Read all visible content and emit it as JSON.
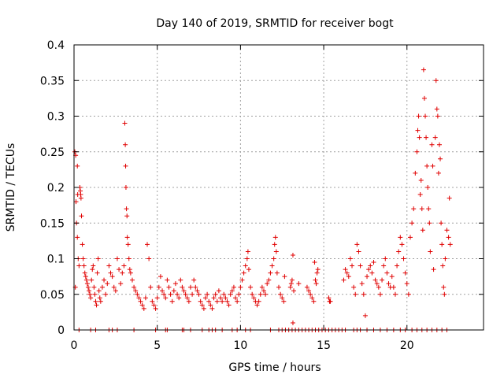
{
  "chart_data": {
    "type": "scatter",
    "title": "Day 140 of 2019, SRMTID for receiver bogt",
    "xlabel": "GPS time / hours",
    "ylabel": "SRMTID / TECUs",
    "xlim": [
      0,
      24.6
    ],
    "ylim": [
      0,
      0.4
    ],
    "x_ticks": [
      0,
      5,
      10,
      15,
      20
    ],
    "x_tick_labels": [
      "0",
      "5",
      "10",
      "15",
      "20"
    ],
    "y_ticks": [
      0,
      0.05,
      0.1,
      0.15,
      0.2,
      0.25,
      0.3,
      0.35,
      0.4
    ],
    "y_tick_labels": [
      "0",
      "0.05",
      "0.1",
      "0.15",
      "0.2",
      "0.25",
      "0.3",
      "0.35",
      "0.4"
    ],
    "grid": true,
    "marker": "+",
    "marker_color": "#e00000",
    "series": [
      {
        "name": "SRMTID",
        "points": [
          [
            0.05,
            0.25
          ],
          [
            0.1,
            0.245
          ],
          [
            0.12,
            0.18
          ],
          [
            0.15,
            0.15
          ],
          [
            0.2,
            0.13
          ],
          [
            0.25,
            0.1
          ],
          [
            0.3,
            0.09
          ],
          [
            0.08,
            0.06
          ],
          [
            0.2,
            0.23
          ],
          [
            0.22,
            0.19
          ],
          [
            0.35,
            0.2
          ],
          [
            0.38,
            0.195
          ],
          [
            0.4,
            0.19
          ],
          [
            0.42,
            0.185
          ],
          [
            0.45,
            0.16
          ],
          [
            0.5,
            0.12
          ],
          [
            0.55,
            0.1
          ],
          [
            0.6,
            0.09
          ],
          [
            0.65,
            0.08
          ],
          [
            0.7,
            0.075
          ],
          [
            0.75,
            0.07
          ],
          [
            0.8,
            0.065
          ],
          [
            0.85,
            0.06
          ],
          [
            0.9,
            0.055
          ],
          [
            0.95,
            0.05
          ],
          [
            1.0,
            0.045
          ],
          [
            1.05,
            0.07
          ],
          [
            1.1,
            0.085
          ],
          [
            1.15,
            0.09
          ],
          [
            1.2,
            0.06
          ],
          [
            1.25,
            0.05
          ],
          [
            1.3,
            0.04
          ],
          [
            1.35,
            0.035
          ],
          [
            1.4,
            0.08
          ],
          [
            1.45,
            0.1
          ],
          [
            1.5,
            0.055
          ],
          [
            1.55,
            0.045
          ],
          [
            1.6,
            0.04
          ],
          [
            1.7,
            0.06
          ],
          [
            1.8,
            0.07
          ],
          [
            1.9,
            0.05
          ],
          [
            2.0,
            0.065
          ],
          [
            2.1,
            0.09
          ],
          [
            2.2,
            0.08
          ],
          [
            2.3,
            0.075
          ],
          [
            2.4,
            0.06
          ],
          [
            2.5,
            0.055
          ],
          [
            2.6,
            0.1
          ],
          [
            2.7,
            0.085
          ],
          [
            2.8,
            0.065
          ],
          [
            2.9,
            0.08
          ],
          [
            3.0,
            0.09
          ],
          [
            3.05,
            0.29
          ],
          [
            3.08,
            0.26
          ],
          [
            3.1,
            0.23
          ],
          [
            3.12,
            0.2
          ],
          [
            3.15,
            0.17
          ],
          [
            3.18,
            0.16
          ],
          [
            3.2,
            0.13
          ],
          [
            3.25,
            0.12
          ],
          [
            3.3,
            0.1
          ],
          [
            3.35,
            0.085
          ],
          [
            3.4,
            0.08
          ],
          [
            3.5,
            0.07
          ],
          [
            3.6,
            0.06
          ],
          [
            3.7,
            0.055
          ],
          [
            3.8,
            0.05
          ],
          [
            3.9,
            0.045
          ],
          [
            4.0,
            0.04
          ],
          [
            4.1,
            0.035
          ],
          [
            4.2,
            0.03
          ],
          [
            4.3,
            0.045
          ],
          [
            4.4,
            0.12
          ],
          [
            4.5,
            0.1
          ],
          [
            4.6,
            0.06
          ],
          [
            4.7,
            0.04
          ],
          [
            4.8,
            0.035
          ],
          [
            4.9,
            0.03
          ],
          [
            5.0,
            0.045
          ],
          [
            5.1,
            0.06
          ],
          [
            5.2,
            0.075
          ],
          [
            5.3,
            0.055
          ],
          [
            5.4,
            0.05
          ],
          [
            5.5,
            0.045
          ],
          [
            5.6,
            0.07
          ],
          [
            5.7,
            0.06
          ],
          [
            5.8,
            0.05
          ],
          [
            5.9,
            0.04
          ],
          [
            6.0,
            0.055
          ],
          [
            6.1,
            0.065
          ],
          [
            6.2,
            0.05
          ],
          [
            6.3,
            0.045
          ],
          [
            6.4,
            0.07
          ],
          [
            6.5,
            0.06
          ],
          [
            6.6,
            0.055
          ],
          [
            6.7,
            0.05
          ],
          [
            6.8,
            0.045
          ],
          [
            6.9,
            0.04
          ],
          [
            7.0,
            0.06
          ],
          [
            7.1,
            0.05
          ],
          [
            7.2,
            0.07
          ],
          [
            7.3,
            0.06
          ],
          [
            7.4,
            0.055
          ],
          [
            7.5,
            0.05
          ],
          [
            7.6,
            0.04
          ],
          [
            7.7,
            0.035
          ],
          [
            7.8,
            0.03
          ],
          [
            7.9,
            0.045
          ],
          [
            8.0,
            0.05
          ],
          [
            8.1,
            0.04
          ],
          [
            8.2,
            0.035
          ],
          [
            8.3,
            0.03
          ],
          [
            8.4,
            0.045
          ],
          [
            8.5,
            0.05
          ],
          [
            8.6,
            0.04
          ],
          [
            8.7,
            0.055
          ],
          [
            8.8,
            0.045
          ],
          [
            8.9,
            0.04
          ],
          [
            9.0,
            0.05
          ],
          [
            9.1,
            0.045
          ],
          [
            9.2,
            0.04
          ],
          [
            9.3,
            0.035
          ],
          [
            9.4,
            0.05
          ],
          [
            9.5,
            0.055
          ],
          [
            9.6,
            0.06
          ],
          [
            9.7,
            0.045
          ],
          [
            9.8,
            0.04
          ],
          [
            9.9,
            0.05
          ],
          [
            10.0,
            0.06
          ],
          [
            10.1,
            0.07
          ],
          [
            10.2,
            0.08
          ],
          [
            10.3,
            0.09
          ],
          [
            10.4,
            0.1
          ],
          [
            10.45,
            0.11
          ],
          [
            10.5,
            0.085
          ],
          [
            10.6,
            0.06
          ],
          [
            10.7,
            0.05
          ],
          [
            10.8,
            0.045
          ],
          [
            10.9,
            0.04
          ],
          [
            11.0,
            0.035
          ],
          [
            11.1,
            0.04
          ],
          [
            11.2,
            0.05
          ],
          [
            11.3,
            0.06
          ],
          [
            11.4,
            0.055
          ],
          [
            11.5,
            0.05
          ],
          [
            11.6,
            0.065
          ],
          [
            11.7,
            0.07
          ],
          [
            11.8,
            0.08
          ],
          [
            11.9,
            0.09
          ],
          [
            12.0,
            0.1
          ],
          [
            12.05,
            0.12
          ],
          [
            12.1,
            0.13
          ],
          [
            12.15,
            0.11
          ],
          [
            12.2,
            0.08
          ],
          [
            12.3,
            0.06
          ],
          [
            12.4,
            0.05
          ],
          [
            12.5,
            0.045
          ],
          [
            12.6,
            0.04
          ],
          [
            12.65,
            0.075
          ],
          [
            13.0,
            0.06
          ],
          [
            13.05,
            0.065
          ],
          [
            13.1,
            0.07
          ],
          [
            13.15,
            0.105
          ],
          [
            13.2,
            0.055
          ],
          [
            13.15,
            0.01
          ],
          [
            13.5,
            0.065
          ],
          [
            14.0,
            0.06
          ],
          [
            14.1,
            0.055
          ],
          [
            14.2,
            0.05
          ],
          [
            14.3,
            0.045
          ],
          [
            14.4,
            0.04
          ],
          [
            14.45,
            0.095
          ],
          [
            14.5,
            0.07
          ],
          [
            14.55,
            0.065
          ],
          [
            14.6,
            0.08
          ],
          [
            14.65,
            0.085
          ],
          [
            15.3,
            0.045
          ],
          [
            15.35,
            0.04
          ],
          [
            15.4,
            0.04
          ],
          [
            16.2,
            0.07
          ],
          [
            16.3,
            0.085
          ],
          [
            16.4,
            0.08
          ],
          [
            16.5,
            0.075
          ],
          [
            16.6,
            0.1
          ],
          [
            16.7,
            0.09
          ],
          [
            16.8,
            0.06
          ],
          [
            16.9,
            0.05
          ],
          [
            17.0,
            0.12
          ],
          [
            17.1,
            0.11
          ],
          [
            17.2,
            0.09
          ],
          [
            17.3,
            0.065
          ],
          [
            17.4,
            0.05
          ],
          [
            17.5,
            0.02
          ],
          [
            17.6,
            0.075
          ],
          [
            17.7,
            0.085
          ],
          [
            17.8,
            0.09
          ],
          [
            17.9,
            0.08
          ],
          [
            18.0,
            0.095
          ],
          [
            18.1,
            0.07
          ],
          [
            18.2,
            0.065
          ],
          [
            18.3,
            0.06
          ],
          [
            18.4,
            0.05
          ],
          [
            18.5,
            0.07
          ],
          [
            18.6,
            0.09
          ],
          [
            18.7,
            0.1
          ],
          [
            18.8,
            0.08
          ],
          [
            18.9,
            0.065
          ],
          [
            19.0,
            0.06
          ],
          [
            19.1,
            0.075
          ],
          [
            19.2,
            0.06
          ],
          [
            19.3,
            0.05
          ],
          [
            19.4,
            0.09
          ],
          [
            19.5,
            0.11
          ],
          [
            19.6,
            0.13
          ],
          [
            19.7,
            0.12
          ],
          [
            19.8,
            0.1
          ],
          [
            19.9,
            0.08
          ],
          [
            20.0,
            0.065
          ],
          [
            20.1,
            0.05
          ],
          [
            20.2,
            0.13
          ],
          [
            20.3,
            0.15
          ],
          [
            20.4,
            0.17
          ],
          [
            20.5,
            0.22
          ],
          [
            20.6,
            0.25
          ],
          [
            20.65,
            0.28
          ],
          [
            20.7,
            0.3
          ],
          [
            20.75,
            0.27
          ],
          [
            20.8,
            0.19
          ],
          [
            20.85,
            0.21
          ],
          [
            20.9,
            0.17
          ],
          [
            20.95,
            0.14
          ],
          [
            21.0,
            0.365
          ],
          [
            21.05,
            0.325
          ],
          [
            21.1,
            0.3
          ],
          [
            21.15,
            0.27
          ],
          [
            21.2,
            0.23
          ],
          [
            21.25,
            0.2
          ],
          [
            21.3,
            0.17
          ],
          [
            21.35,
            0.15
          ],
          [
            21.4,
            0.11
          ],
          [
            21.5,
            0.26
          ],
          [
            21.55,
            0.23
          ],
          [
            21.6,
            0.085
          ],
          [
            21.7,
            0.27
          ],
          [
            21.75,
            0.35
          ],
          [
            21.8,
            0.31
          ],
          [
            21.85,
            0.3
          ],
          [
            21.9,
            0.22
          ],
          [
            21.95,
            0.26
          ],
          [
            22.0,
            0.24
          ],
          [
            22.05,
            0.15
          ],
          [
            22.1,
            0.12
          ],
          [
            22.15,
            0.09
          ],
          [
            22.2,
            0.06
          ],
          [
            22.25,
            0.05
          ],
          [
            22.3,
            0.1
          ],
          [
            22.4,
            0.14
          ],
          [
            22.5,
            0.13
          ],
          [
            22.55,
            0.185
          ],
          [
            22.6,
            0.12
          ]
        ],
        "zero_points": [
          0.3,
          1.0,
          1.3,
          2.1,
          2.3,
          2.6,
          3.6,
          4.9,
          5.5,
          5.6,
          6.5,
          6.6,
          7.0,
          7.7,
          8.1,
          8.3,
          8.5,
          8.9,
          9.5,
          9.8,
          10.3,
          10.6,
          11.8,
          12.3,
          12.5,
          12.7,
          12.9,
          13.1,
          13.3,
          13.5,
          13.7,
          13.9,
          14.1,
          14.3,
          14.5,
          14.7,
          14.9,
          15.1,
          15.3,
          15.5,
          15.7,
          15.9,
          16.1,
          16.3,
          16.8,
          17.0,
          17.2,
          17.6,
          18.0,
          18.4,
          18.8,
          19.2,
          19.6,
          19.9,
          20.3,
          20.6,
          20.9,
          21.2,
          21.5,
          21.8,
          22.1,
          22.4
        ]
      }
    ]
  }
}
